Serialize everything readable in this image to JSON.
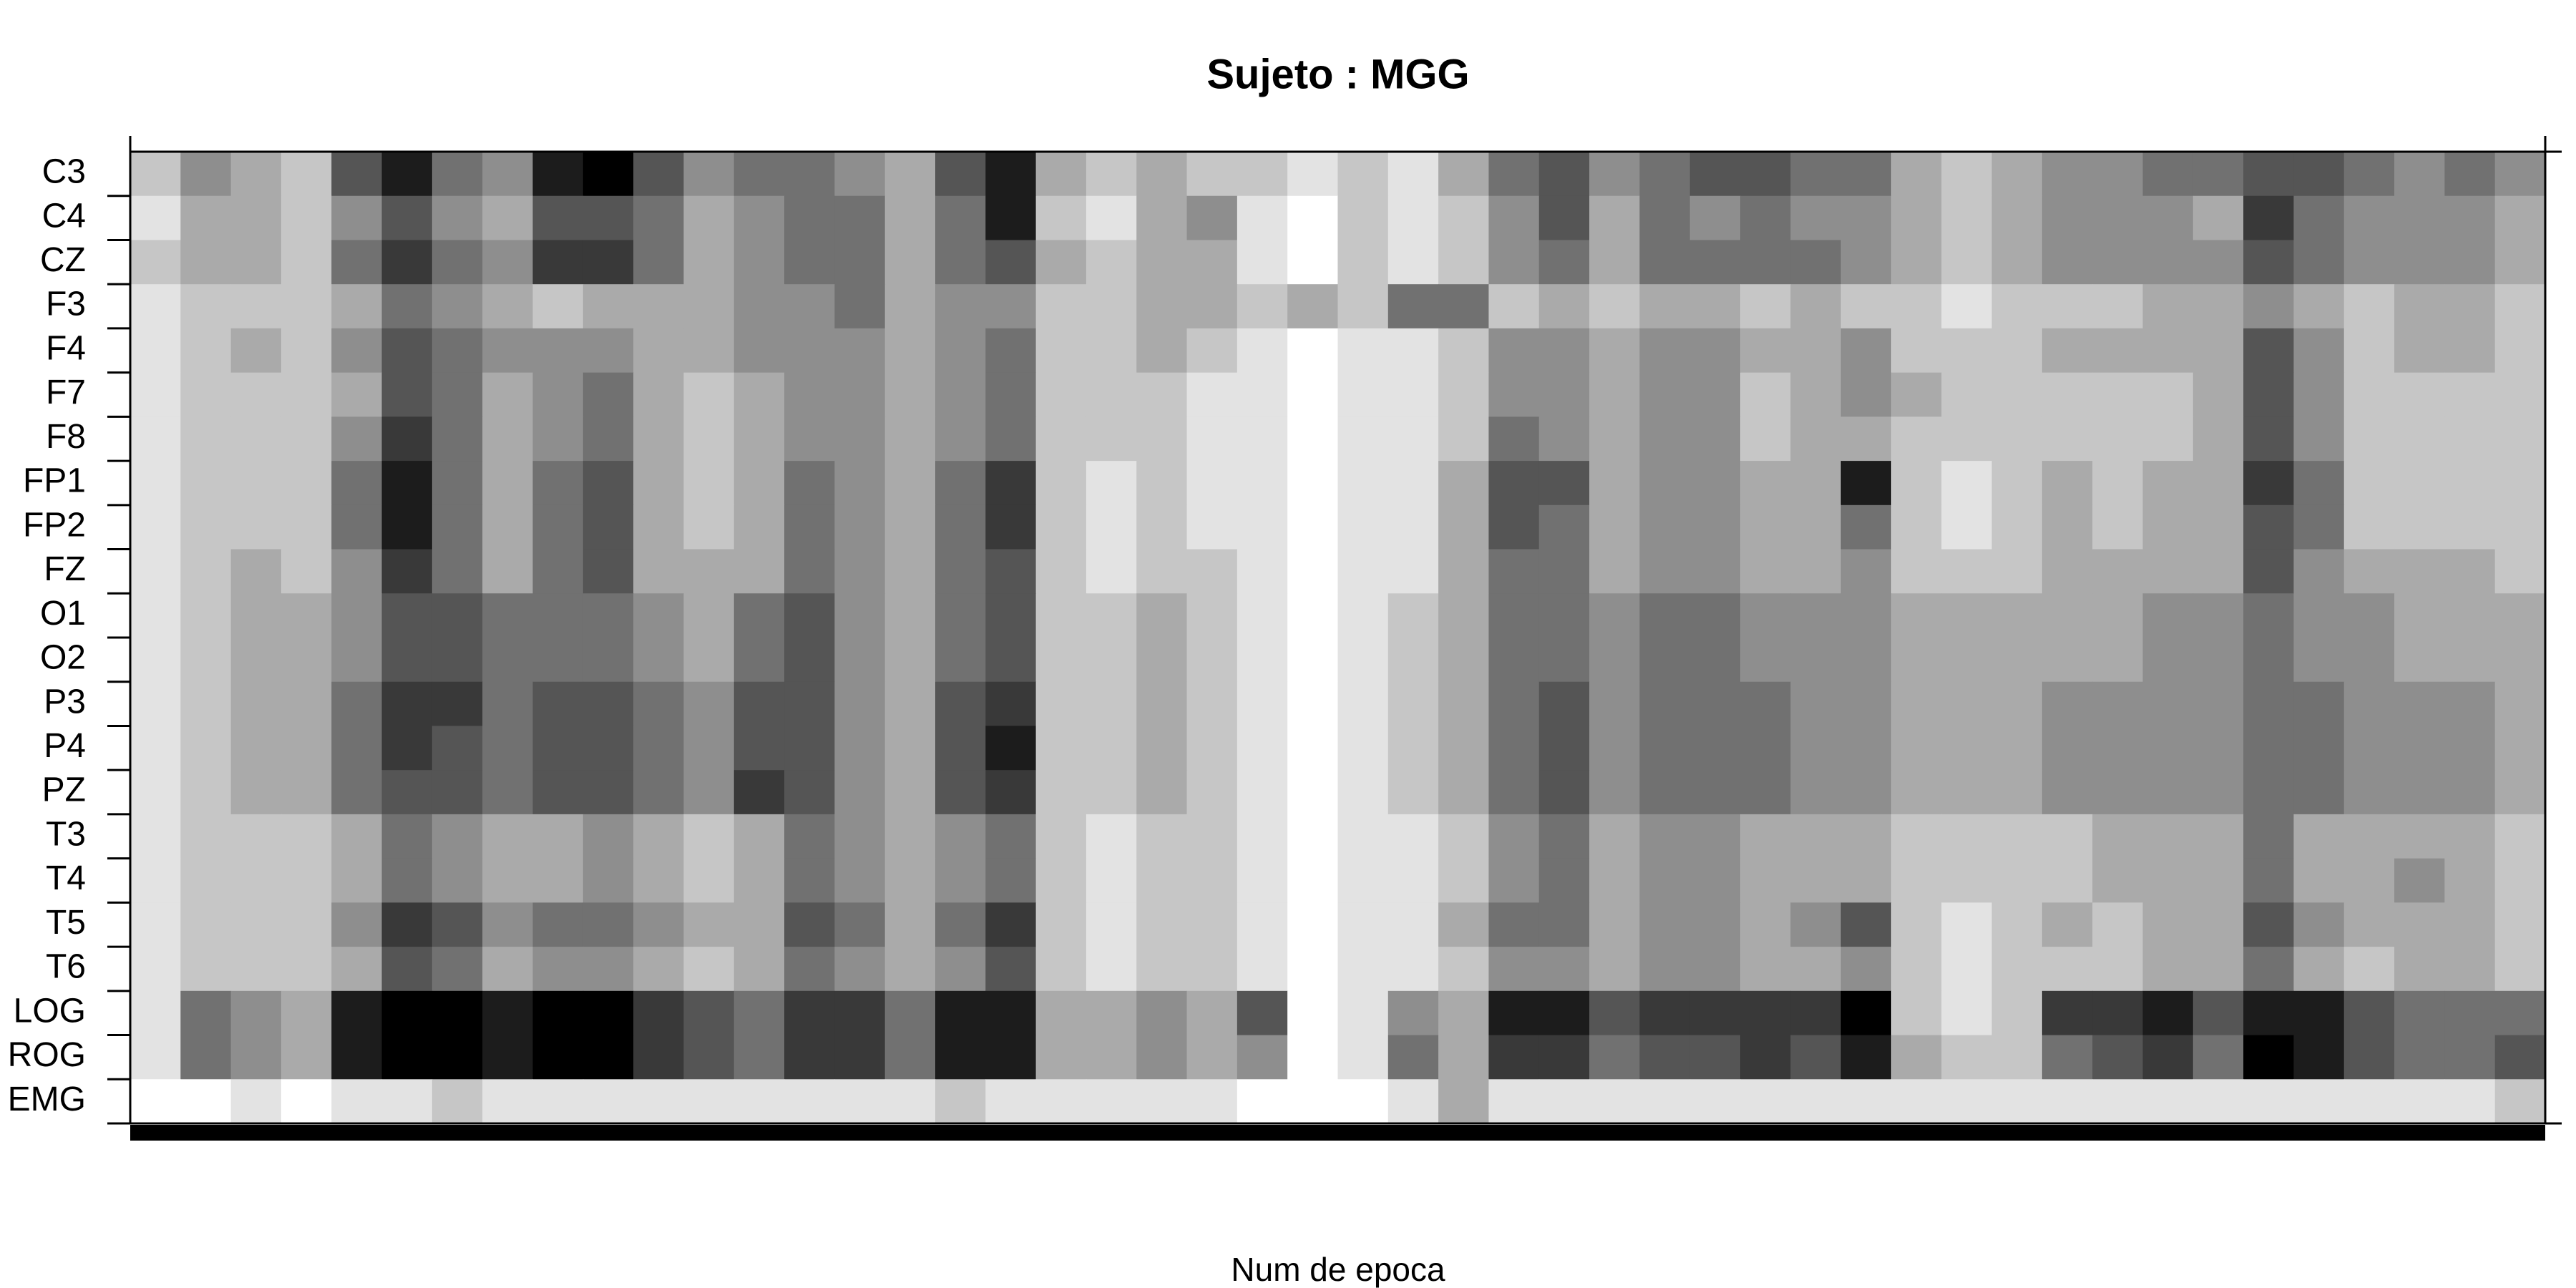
{
  "chart_data": {
    "type": "heatmap",
    "title": "Sujeto : MGG",
    "xlabel": "Num de epoca",
    "color_low": "#ffffff",
    "color_high": "#000000",
    "zlim": [
      0,
      9
    ],
    "rows": [
      "C3",
      "C4",
      "CZ",
      "F3",
      "F4",
      "F7",
      "F8",
      "FP1",
      "FP2",
      "FZ",
      "O1",
      "O2",
      "P3",
      "P4",
      "PZ",
      "T3",
      "T4",
      "T5",
      "T6",
      "LOG",
      "ROG",
      "EMG"
    ],
    "values": [
      [
        2,
        4,
        3,
        2,
        6,
        8,
        5,
        4,
        8,
        9,
        6,
        4,
        5,
        5,
        4,
        3,
        6,
        8,
        3,
        2,
        3,
        2,
        2,
        1,
        2,
        1,
        3,
        5,
        6,
        4,
        5,
        6,
        6,
        5,
        5,
        3,
        2,
        3,
        4,
        4,
        5,
        5,
        6,
        6,
        5,
        4,
        5,
        4
      ],
      [
        1,
        3,
        3,
        2,
        4,
        6,
        4,
        3,
        6,
        6,
        5,
        3,
        4,
        5,
        5,
        3,
        5,
        8,
        2,
        1,
        3,
        4,
        1,
        0,
        2,
        1,
        2,
        4,
        6,
        3,
        5,
        4,
        5,
        4,
        4,
        3,
        2,
        3,
        4,
        4,
        4,
        3,
        7,
        5,
        4,
        4,
        4,
        3
      ],
      [
        2,
        3,
        3,
        2,
        5,
        7,
        5,
        4,
        7,
        7,
        5,
        3,
        4,
        5,
        5,
        3,
        5,
        6,
        3,
        2,
        3,
        3,
        1,
        0,
        2,
        1,
        2,
        4,
        5,
        3,
        5,
        5,
        5,
        5,
        4,
        3,
        2,
        3,
        4,
        4,
        4,
        4,
        6,
        5,
        4,
        4,
        4,
        3
      ],
      [
        1,
        2,
        2,
        2,
        3,
        5,
        4,
        3,
        2,
        3,
        3,
        3,
        4,
        4,
        5,
        3,
        4,
        4,
        2,
        2,
        3,
        3,
        2,
        3,
        2,
        5,
        5,
        2,
        3,
        2,
        3,
        3,
        2,
        3,
        2,
        2,
        1,
        2,
        2,
        2,
        3,
        3,
        4,
        3,
        2,
        3,
        3,
        2
      ],
      [
        1,
        2,
        3,
        2,
        4,
        6,
        5,
        4,
        4,
        4,
        3,
        3,
        4,
        4,
        4,
        3,
        4,
        5,
        2,
        2,
        3,
        2,
        1,
        0,
        1,
        1,
        2,
        4,
        4,
        3,
        4,
        4,
        3,
        3,
        4,
        2,
        2,
        2,
        3,
        3,
        3,
        3,
        6,
        4,
        2,
        3,
        3,
        2
      ],
      [
        1,
        2,
        2,
        2,
        3,
        6,
        5,
        3,
        4,
        5,
        3,
        2,
        3,
        4,
        4,
        3,
        4,
        5,
        2,
        2,
        2,
        1,
        1,
        0,
        1,
        1,
        2,
        4,
        4,
        3,
        4,
        4,
        2,
        3,
        4,
        3,
        2,
        2,
        2,
        2,
        2,
        3,
        6,
        4,
        2,
        2,
        2,
        2
      ],
      [
        1,
        2,
        2,
        2,
        4,
        7,
        5,
        3,
        4,
        5,
        3,
        2,
        3,
        4,
        4,
        3,
        4,
        5,
        2,
        2,
        2,
        1,
        1,
        0,
        1,
        1,
        2,
        5,
        4,
        3,
        4,
        4,
        2,
        3,
        3,
        2,
        2,
        2,
        2,
        2,
        2,
        3,
        6,
        4,
        2,
        2,
        2,
        2
      ],
      [
        1,
        2,
        2,
        2,
        5,
        8,
        5,
        3,
        5,
        6,
        3,
        2,
        3,
        5,
        4,
        3,
        5,
        7,
        2,
        1,
        2,
        1,
        1,
        0,
        1,
        1,
        3,
        6,
        6,
        3,
        4,
        4,
        3,
        3,
        8,
        2,
        1,
        2,
        3,
        2,
        3,
        3,
        7,
        5,
        2,
        2,
        2,
        2
      ],
      [
        1,
        2,
        2,
        2,
        5,
        8,
        5,
        3,
        5,
        6,
        3,
        2,
        3,
        5,
        4,
        3,
        5,
        7,
        2,
        1,
        2,
        1,
        1,
        0,
        1,
        1,
        3,
        6,
        5,
        3,
        4,
        4,
        3,
        3,
        5,
        2,
        1,
        2,
        3,
        2,
        3,
        3,
        6,
        5,
        2,
        2,
        2,
        2
      ],
      [
        1,
        2,
        3,
        2,
        4,
        7,
        5,
        3,
        5,
        6,
        3,
        3,
        3,
        5,
        4,
        3,
        5,
        6,
        2,
        1,
        2,
        2,
        1,
        0,
        1,
        1,
        3,
        5,
        5,
        3,
        4,
        4,
        3,
        3,
        4,
        2,
        2,
        2,
        3,
        3,
        3,
        3,
        6,
        4,
        3,
        3,
        3,
        2
      ],
      [
        1,
        2,
        3,
        3,
        4,
        6,
        6,
        5,
        5,
        5,
        4,
        3,
        5,
        6,
        4,
        3,
        5,
        6,
        2,
        2,
        3,
        2,
        1,
        0,
        1,
        2,
        3,
        5,
        5,
        4,
        5,
        5,
        4,
        4,
        4,
        3,
        3,
        3,
        3,
        3,
        4,
        4,
        5,
        4,
        4,
        3,
        3,
        3
      ],
      [
        1,
        2,
        3,
        3,
        4,
        6,
        6,
        5,
        5,
        5,
        4,
        3,
        5,
        6,
        4,
        3,
        5,
        6,
        2,
        2,
        3,
        2,
        1,
        0,
        1,
        2,
        3,
        5,
        5,
        4,
        5,
        5,
        4,
        4,
        4,
        3,
        3,
        3,
        3,
        3,
        4,
        4,
        5,
        4,
        4,
        3,
        3,
        3
      ],
      [
        1,
        2,
        3,
        3,
        5,
        7,
        7,
        5,
        6,
        6,
        5,
        4,
        6,
        6,
        4,
        3,
        6,
        7,
        2,
        2,
        3,
        2,
        1,
        0,
        1,
        2,
        3,
        5,
        6,
        4,
        5,
        5,
        5,
        4,
        4,
        3,
        3,
        3,
        4,
        4,
        4,
        4,
        5,
        5,
        4,
        4,
        4,
        3
      ],
      [
        1,
        2,
        3,
        3,
        5,
        7,
        6,
        5,
        6,
        6,
        5,
        4,
        6,
        6,
        4,
        3,
        6,
        8,
        2,
        2,
        3,
        2,
        1,
        0,
        1,
        2,
        3,
        5,
        6,
        4,
        5,
        5,
        5,
        4,
        4,
        3,
        3,
        3,
        4,
        4,
        4,
        4,
        5,
        5,
        4,
        4,
        4,
        3
      ],
      [
        1,
        2,
        3,
        3,
        5,
        6,
        6,
        5,
        6,
        6,
        5,
        4,
        7,
        6,
        4,
        3,
        6,
        7,
        2,
        2,
        3,
        2,
        1,
        0,
        1,
        2,
        3,
        5,
        6,
        4,
        5,
        5,
        5,
        4,
        4,
        3,
        3,
        3,
        4,
        4,
        4,
        4,
        5,
        5,
        4,
        4,
        4,
        3
      ],
      [
        1,
        2,
        2,
        2,
        3,
        5,
        4,
        3,
        3,
        4,
        3,
        2,
        3,
        5,
        4,
        3,
        4,
        5,
        2,
        1,
        2,
        2,
        1,
        0,
        1,
        1,
        2,
        4,
        5,
        3,
        4,
        4,
        3,
        3,
        3,
        2,
        2,
        2,
        2,
        3,
        3,
        3,
        5,
        3,
        3,
        3,
        3,
        2
      ],
      [
        1,
        2,
        2,
        2,
        3,
        5,
        4,
        3,
        3,
        4,
        3,
        2,
        3,
        5,
        4,
        3,
        4,
        5,
        2,
        1,
        2,
        2,
        1,
        0,
        1,
        1,
        2,
        4,
        5,
        3,
        4,
        4,
        3,
        3,
        3,
        2,
        2,
        2,
        2,
        3,
        3,
        3,
        5,
        3,
        3,
        4,
        3,
        2
      ],
      [
        1,
        2,
        2,
        2,
        4,
        7,
        6,
        4,
        5,
        5,
        4,
        3,
        3,
        6,
        5,
        3,
        5,
        7,
        2,
        1,
        2,
        2,
        1,
        0,
        1,
        1,
        3,
        5,
        5,
        3,
        4,
        4,
        3,
        4,
        6,
        2,
        1,
        2,
        3,
        2,
        3,
        3,
        6,
        4,
        3,
        3,
        3,
        2
      ],
      [
        1,
        2,
        2,
        2,
        3,
        6,
        5,
        3,
        4,
        4,
        3,
        2,
        3,
        5,
        4,
        3,
        4,
        6,
        2,
        1,
        2,
        2,
        1,
        0,
        1,
        1,
        2,
        4,
        4,
        3,
        4,
        4,
        3,
        3,
        4,
        2,
        1,
        2,
        2,
        2,
        3,
        3,
        5,
        3,
        2,
        3,
        3,
        2
      ],
      [
        1,
        5,
        4,
        3,
        8,
        9,
        9,
        8,
        9,
        9,
        7,
        6,
        5,
        7,
        7,
        5,
        8,
        8,
        3,
        3,
        4,
        3,
        6,
        0,
        1,
        4,
        3,
        8,
        8,
        6,
        7,
        7,
        7,
        7,
        9,
        2,
        1,
        2,
        7,
        7,
        8,
        6,
        8,
        8,
        6,
        5,
        5,
        5
      ],
      [
        1,
        5,
        4,
        3,
        8,
        9,
        9,
        8,
        9,
        9,
        7,
        6,
        5,
        7,
        7,
        5,
        8,
        8,
        3,
        3,
        4,
        3,
        4,
        0,
        1,
        5,
        3,
        7,
        7,
        5,
        6,
        6,
        7,
        6,
        8,
        3,
        2,
        2,
        5,
        6,
        7,
        5,
        9,
        8,
        6,
        5,
        5,
        6
      ],
      [
        0,
        0,
        1,
        0,
        1,
        1,
        2,
        1,
        1,
        1,
        1,
        1,
        1,
        1,
        1,
        1,
        2,
        1,
        1,
        1,
        1,
        1,
        0,
        0,
        0,
        1,
        3,
        1,
        1,
        1,
        1,
        1,
        1,
        1,
        1,
        1,
        1,
        1,
        1,
        1,
        1,
        1,
        1,
        1,
        1,
        1,
        1,
        2
      ]
    ]
  }
}
